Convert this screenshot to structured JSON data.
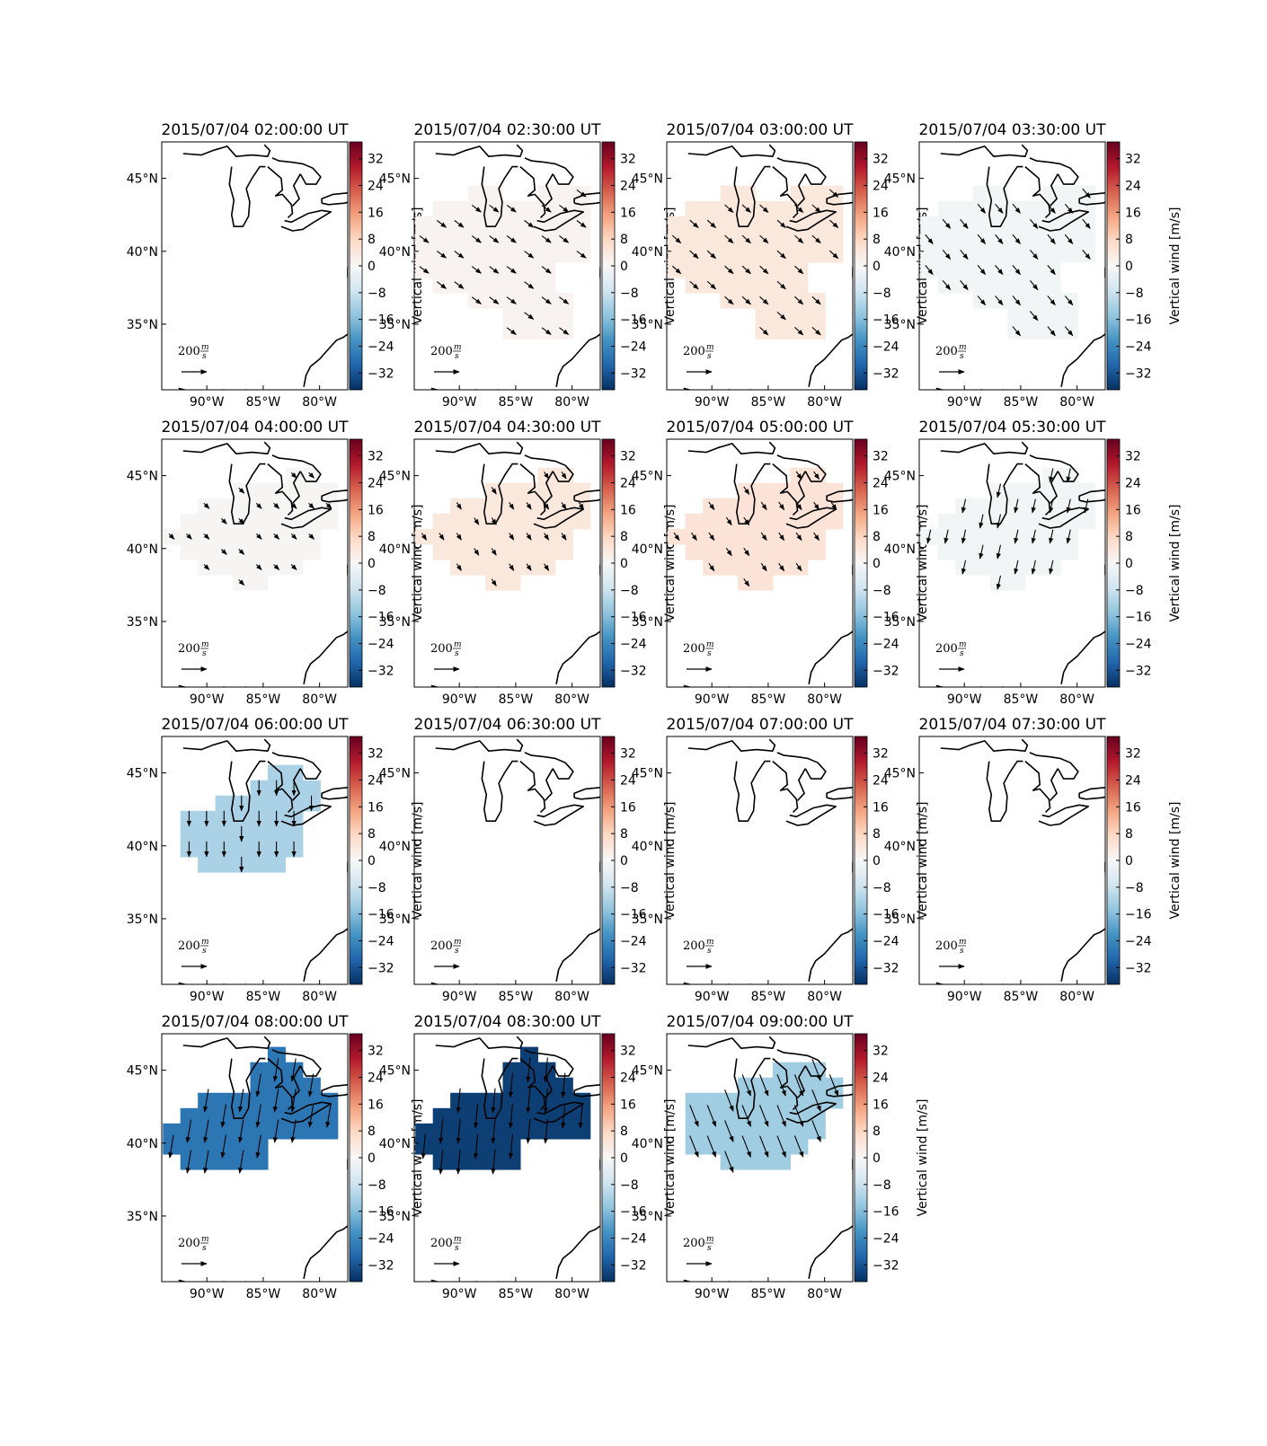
{
  "chart_data": {
    "type": "heatmap",
    "description_units": "vertical wind in m/s, horizontal wind vectors in m/s",
    "colorbar": {
      "label": "Vertical wind [m/s]",
      "ticks": [
        32,
        24,
        16,
        8,
        0,
        -8,
        -16,
        -24,
        -32
      ],
      "tick_labels": [
        "32",
        "24",
        "16",
        "8",
        "0",
        "−8",
        "−16",
        "−24",
        "−32"
      ],
      "range": [
        -37,
        37
      ],
      "colormap": "RdBu_r"
    },
    "axes": {
      "x_tick_labels": [
        "90°W",
        "85°W",
        "80°W"
      ],
      "x_tick_values": [
        -90,
        -85,
        -80
      ],
      "y_tick_labels": [
        "45°N",
        "40°N",
        "35°N"
      ],
      "y_tick_values": [
        45,
        40,
        35
      ],
      "lon_range": [
        -94,
        -77.5
      ],
      "lat_range": [
        30.5,
        47.5
      ]
    },
    "quiver_key": {
      "value_label": "200",
      "unit_num": "m",
      "unit_den": "s"
    },
    "panels": [
      {
        "title": "2015/07/04 02:00:00 UT",
        "value": null,
        "has_data": false,
        "region": "none",
        "arrow": null
      },
      {
        "title": "2015/07/04 02:30:00 UT",
        "value": 1,
        "has_data": true,
        "region": "wide",
        "arrow": [
          0.6,
          -0.45
        ]
      },
      {
        "title": "2015/07/04 03:00:00 UT",
        "value": 4,
        "has_data": true,
        "region": "wide",
        "arrow": [
          0.55,
          -0.5
        ]
      },
      {
        "title": "2015/07/04 03:30:00 UT",
        "value": -1,
        "has_data": true,
        "region": "wide",
        "arrow": [
          0.5,
          -0.6
        ]
      },
      {
        "title": "2015/07/04 04:00:00 UT",
        "value": 0.5,
        "has_data": true,
        "region": "mid",
        "arrow": [
          0.35,
          -0.35
        ]
      },
      {
        "title": "2015/07/04 04:30:00 UT",
        "value": 4,
        "has_data": true,
        "region": "mid",
        "arrow": [
          0.3,
          -0.45
        ]
      },
      {
        "title": "2015/07/04 05:00:00 UT",
        "value": 5,
        "has_data": true,
        "region": "mid",
        "arrow": [
          0.35,
          -0.5
        ]
      },
      {
        "title": "2015/07/04 05:30:00 UT",
        "value": -1,
        "has_data": true,
        "region": "mid",
        "arrow": [
          -0.2,
          -0.9
        ]
      },
      {
        "title": "2015/07/04 06:00:00 UT",
        "value": -12,
        "has_data": true,
        "region": "blob",
        "arrow": [
          0,
          -1
        ]
      },
      {
        "title": "2015/07/04 06:30:00 UT",
        "value": null,
        "has_data": false,
        "region": "none",
        "arrow": null
      },
      {
        "title": "2015/07/04 07:00:00 UT",
        "value": null,
        "has_data": false,
        "region": "none",
        "arrow": null
      },
      {
        "title": "2015/07/04 07:30:00 UT",
        "value": null,
        "has_data": false,
        "region": "none",
        "arrow": null
      },
      {
        "title": "2015/07/04 08:00:00 UT",
        "value": -27,
        "has_data": true,
        "region": "blob2",
        "arrow": [
          -0.25,
          -1.5
        ]
      },
      {
        "title": "2015/07/04 08:30:00 UT",
        "value": -35,
        "has_data": true,
        "region": "blob2",
        "arrow": [
          -0.15,
          -1.6
        ]
      },
      {
        "title": "2015/07/04 09:00:00 UT",
        "value": -13,
        "has_data": true,
        "region": "blob3",
        "arrow": [
          0.55,
          -1.4
        ]
      }
    ]
  }
}
